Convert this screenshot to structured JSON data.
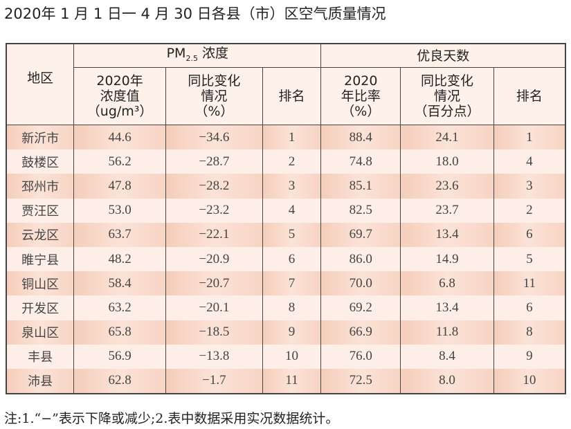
{
  "title": "2020年 1 月 1 日一 4 月 30 日各县（市）区空气质量情况",
  "headers": {
    "region": "地区",
    "pm_group": "PM",
    "pm_sub": "2.5",
    "pm_suffix": " 浓度",
    "good_group": "优良天数",
    "pm_value": [
      "2020年",
      "浓度值",
      "（ug/m³）"
    ],
    "pm_change": [
      "同比变化",
      "情况",
      "（%）"
    ],
    "pm_rank": "排名",
    "good_rate": [
      "2020",
      "年比率",
      "（%）"
    ],
    "good_change": [
      "同比变化",
      "情况",
      "（百分点）"
    ],
    "good_rank": "排名"
  },
  "rows": [
    [
      "新沂市",
      "44.6",
      "−34.6",
      "1",
      "88.4",
      "24.1",
      "1"
    ],
    [
      "鼓楼区",
      "56.2",
      "−28.7",
      "2",
      "74.8",
      "18.0",
      "4"
    ],
    [
      "邳州市",
      "47.8",
      "−28.2",
      "3",
      "85.1",
      "23.6",
      "3"
    ],
    [
      "贾汪区",
      "53.0",
      "−23.2",
      "4",
      "82.5",
      "23.7",
      "2"
    ],
    [
      "云龙区",
      "63.7",
      "−22.1",
      "5",
      "69.7",
      "13.4",
      "6"
    ],
    [
      "睢宁县",
      "48.2",
      "−20.9",
      "6",
      "86.0",
      "14.9",
      "5"
    ],
    [
      "铜山区",
      "58.4",
      "−20.7",
      "7",
      "70.0",
      "6.8",
      "11"
    ],
    [
      "开发区",
      "63.2",
      "−20.1",
      "8",
      "69.2",
      "13.4",
      "6"
    ],
    [
      "泉山区",
      "65.8",
      "−18.5",
      "9",
      "66.9",
      "11.8",
      "8"
    ],
    [
      "丰县",
      "56.9",
      "−13.8",
      "10",
      "76.0",
      "8.4",
      "9"
    ],
    [
      "沛县",
      "62.8",
      "−1.7",
      "11",
      "72.5",
      "8.0",
      "10"
    ]
  ],
  "note": "注:1.“−”表示下降或减少;2.表中数据采用实况数据统计。"
}
